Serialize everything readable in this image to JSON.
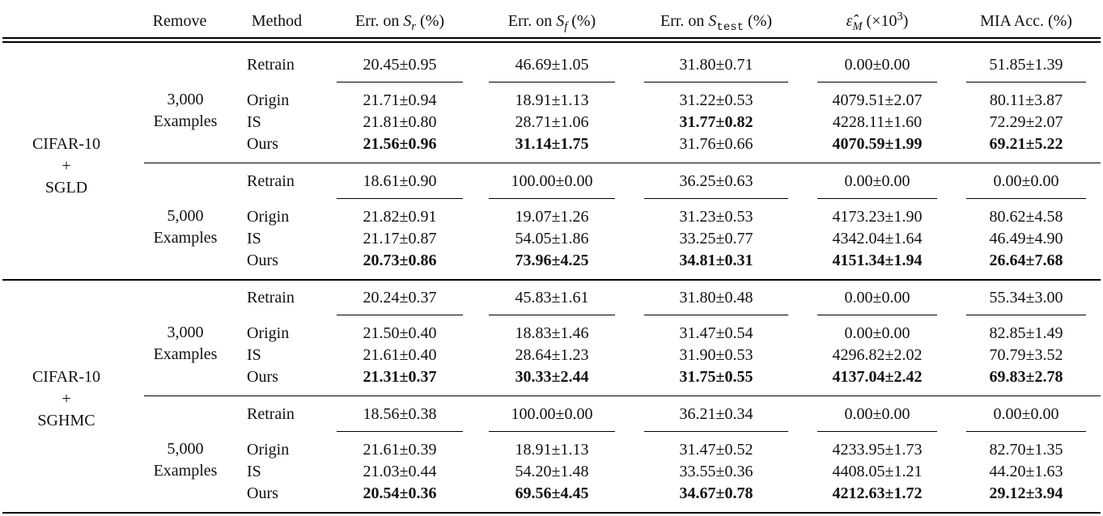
{
  "headers": {
    "remove": "Remove",
    "method": "Method",
    "err_r_prefix": "Err. on ",
    "err_r_sym": "S",
    "err_r_sub": "r",
    "err_f_prefix": "Err. on ",
    "err_f_sym": "S",
    "err_f_sub": "f",
    "err_test_prefix": "Err. on ",
    "err_test_sym": "S",
    "err_test_sub": "test",
    "pct": "(%)",
    "eps_sym": "ε̂",
    "eps_sub": "M",
    "eps_scale": "(×10",
    "eps_exp": "3",
    "eps_close": ")",
    "mia": "MIA Acc. (%)"
  },
  "groups": [
    {
      "dataset": [
        "CIFAR-10",
        "+",
        "SGLD"
      ],
      "blocks": [
        {
          "remove": [
            "3,000",
            "Examples"
          ],
          "rows": [
            {
              "method": "Retrain",
              "cells": [
                "20.45±0.95",
                "46.69±1.05",
                "31.80±0.71",
                "0.00±0.00",
                "51.85±1.39"
              ],
              "bold": [
                false,
                false,
                false,
                false,
                false
              ]
            },
            {
              "method": "Origin",
              "cells": [
                "21.71±0.94",
                "18.91±1.13",
                "31.22±0.53",
                "4079.51±2.07",
                "80.11±3.87"
              ],
              "bold": [
                false,
                false,
                false,
                false,
                false
              ]
            },
            {
              "method": "IS",
              "cells": [
                "21.81±0.80",
                "28.71±1.06",
                "31.77±0.82",
                "4228.11±1.60",
                "72.29±2.07"
              ],
              "bold": [
                false,
                false,
                true,
                false,
                false
              ]
            },
            {
              "method": "Ours",
              "cells": [
                "21.56±0.96",
                "31.14±1.75",
                "31.76±0.66",
                "4070.59±1.99",
                "69.21±5.22"
              ],
              "bold": [
                true,
                true,
                false,
                true,
                true
              ]
            }
          ]
        },
        {
          "remove": [
            "5,000",
            "Examples"
          ],
          "rows": [
            {
              "method": "Retrain",
              "cells": [
                "18.61±0.90",
                "100.00±0.00",
                "36.25±0.63",
                "0.00±0.00",
                "0.00±0.00"
              ],
              "bold": [
                false,
                false,
                false,
                false,
                false
              ]
            },
            {
              "method": "Origin",
              "cells": [
                "21.82±0.91",
                "19.07±1.26",
                "31.23±0.53",
                "4173.23±1.90",
                "80.62±4.58"
              ],
              "bold": [
                false,
                false,
                false,
                false,
                false
              ]
            },
            {
              "method": "IS",
              "cells": [
                "21.17±0.87",
                "54.05±1.86",
                "33.25±0.77",
                "4342.04±1.64",
                "46.49±4.90"
              ],
              "bold": [
                false,
                false,
                false,
                false,
                false
              ]
            },
            {
              "method": "Ours",
              "cells": [
                "20.73±0.86",
                "73.96±4.25",
                "34.81±0.31",
                "4151.34±1.94",
                "26.64±7.68"
              ],
              "bold": [
                true,
                true,
                true,
                true,
                true
              ]
            }
          ]
        }
      ]
    },
    {
      "dataset": [
        "CIFAR-10",
        "+",
        "SGHMC"
      ],
      "blocks": [
        {
          "remove": [
            "3,000",
            "Examples"
          ],
          "rows": [
            {
              "method": "Retrain",
              "cells": [
                "20.24±0.37",
                "45.83±1.61",
                "31.80±0.48",
                "0.00±0.00",
                "55.34±3.00"
              ],
              "bold": [
                false,
                false,
                false,
                false,
                false
              ]
            },
            {
              "method": "Origin",
              "cells": [
                "21.50±0.40",
                "18.83±1.46",
                "31.47±0.54",
                "0.00±0.00",
                "82.85±1.49"
              ],
              "bold": [
                false,
                false,
                false,
                false,
                false
              ]
            },
            {
              "method": "IS",
              "cells": [
                "21.61±0.40",
                "28.64±1.23",
                "31.90±0.53",
                "4296.82±2.02",
                "70.79±3.52"
              ],
              "bold": [
                false,
                false,
                false,
                false,
                false
              ]
            },
            {
              "method": "Ours",
              "cells": [
                "21.31±0.37",
                "30.33±2.44",
                "31.75±0.55",
                "4137.04±2.42",
                "69.83±2.78"
              ],
              "bold": [
                true,
                true,
                true,
                true,
                true
              ]
            }
          ]
        },
        {
          "remove": [
            "5,000",
            "Examples"
          ],
          "rows": [
            {
              "method": "Retrain",
              "cells": [
                "18.56±0.38",
                "100.00±0.00",
                "36.21±0.34",
                "0.00±0.00",
                "0.00±0.00"
              ],
              "bold": [
                false,
                false,
                false,
                false,
                false
              ]
            },
            {
              "method": "Origin",
              "cells": [
                "21.61±0.39",
                "18.91±1.13",
                "31.47±0.52",
                "4233.95±1.73",
                "82.70±1.35"
              ],
              "bold": [
                false,
                false,
                false,
                false,
                false
              ]
            },
            {
              "method": "IS",
              "cells": [
                "21.03±0.44",
                "54.20±1.48",
                "33.55±0.36",
                "4408.05±1.21",
                "44.20±1.63"
              ],
              "bold": [
                false,
                false,
                false,
                false,
                false
              ]
            },
            {
              "method": "Ours",
              "cells": [
                "20.54±0.36",
                "69.56±4.45",
                "34.67±0.78",
                "4212.63±1.72",
                "29.12±3.94"
              ],
              "bold": [
                true,
                true,
                true,
                true,
                true
              ]
            }
          ]
        }
      ]
    }
  ]
}
